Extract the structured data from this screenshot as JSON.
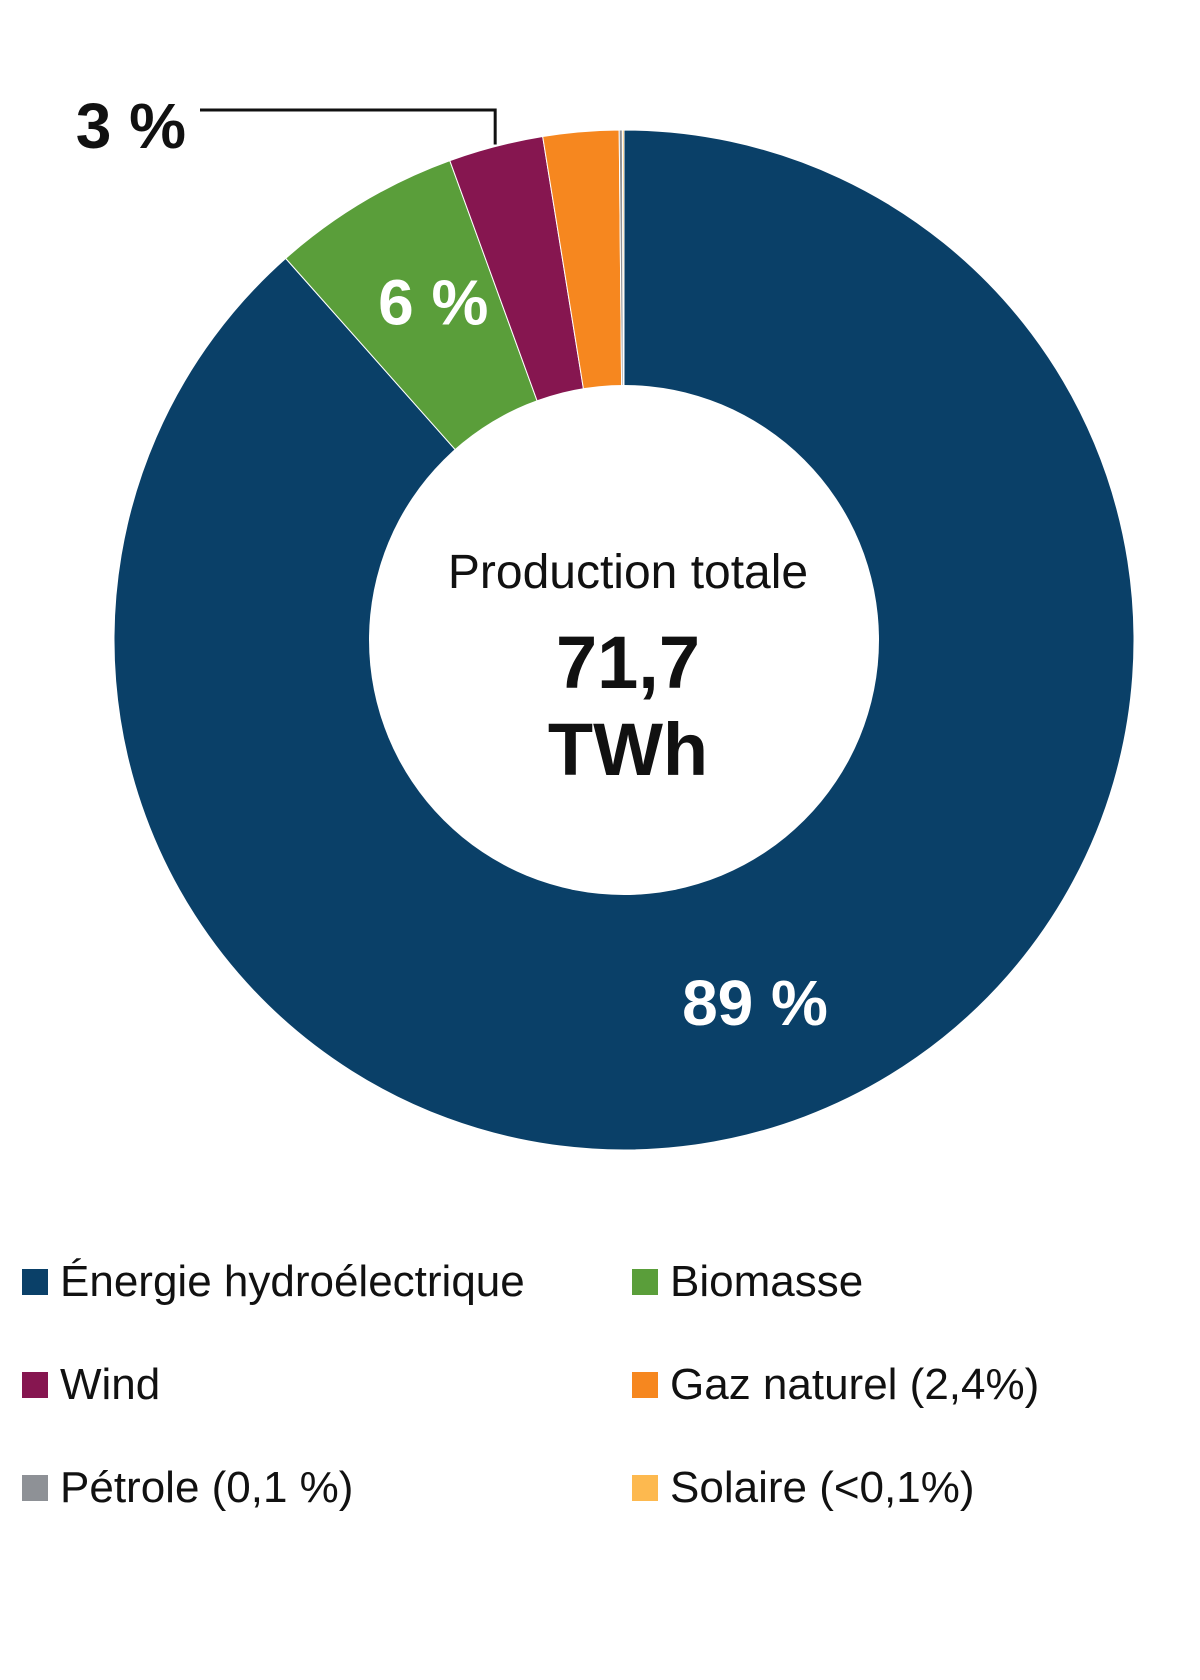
{
  "chart_data": {
    "type": "pie",
    "donut": true,
    "center_label": "Production totale",
    "center_value_line1": "71,7",
    "center_value_line2": "TWh",
    "slices": [
      {
        "label": "Énergie hydroélectrique",
        "value": 88.5,
        "color": "#0a4068",
        "data_label": "89 %"
      },
      {
        "label": "Biomasse",
        "value": 6.0,
        "color": "#5a9e3a",
        "data_label": "6 %"
      },
      {
        "label": "Wind",
        "value": 3.0,
        "color": "#861650",
        "data_label": "3 %"
      },
      {
        "label": "Gaz naturel (2,4%)",
        "value": 2.4,
        "color": "#f6871f",
        "data_label": ""
      },
      {
        "label": "Pétrole (0,1 %)",
        "value": 0.1,
        "color": "#8e9196",
        "data_label": ""
      },
      {
        "label": "Solaire (<0,1%)",
        "value": 0.05,
        "color": "#fdb94f",
        "data_label": ""
      }
    ],
    "legend_position": "bottom"
  }
}
